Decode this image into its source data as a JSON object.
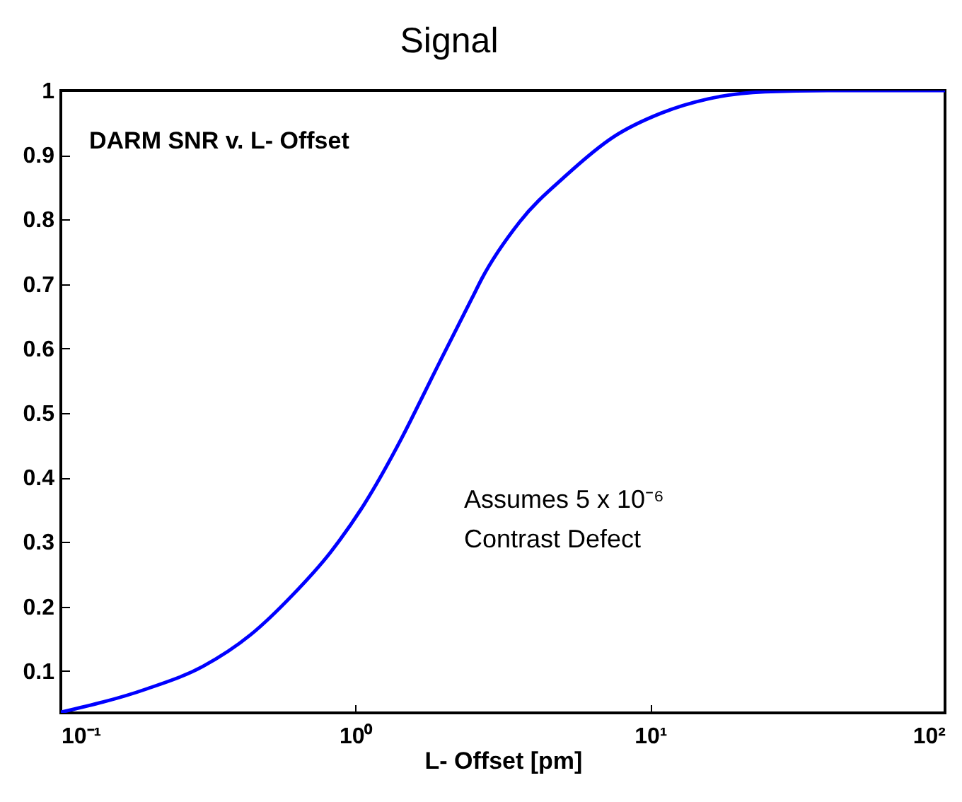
{
  "chart_data": {
    "type": "line",
    "title": "Signal",
    "xlabel": "L- Offset [pm]",
    "log": "x",
    "annotations": [
      "DARM SNR v. L- Offset",
      "Assumes 5 x 10⁻⁶",
      "Contrast Defect"
    ],
    "x": [
      0.1,
      0.195,
      0.303,
      0.44,
      0.612,
      0.822,
      1.065,
      1.43,
      1.72,
      1.92,
      2.49,
      2.68,
      3.6,
      5.2,
      7.5,
      10.9,
      15.7,
      24.5,
      40,
      100
    ],
    "series": [
      {
        "color": "#0000ff",
        "values": [
          0.036,
          0.072,
          0.107,
          0.156,
          0.218,
          0.284,
          0.357,
          0.46,
          0.533,
          0.577,
          0.679,
          0.708,
          0.796,
          0.869,
          0.928,
          0.965,
          0.987,
          0.998,
          1.0,
          1.0
        ]
      }
    ],
    "xlim": [
      0.1,
      100
    ],
    "xticks": [
      {
        "value": 0.1,
        "label": "10⁻¹"
      },
      {
        "value": 1,
        "label": "10⁰"
      },
      {
        "value": 10,
        "label": "10¹"
      },
      {
        "value": 100,
        "label": "10²"
      }
    ],
    "ylim": [
      0.035,
      1
    ],
    "yticks": [
      0.1,
      0.2,
      0.3,
      0.4,
      0.5,
      0.6,
      0.7,
      0.8,
      0.9,
      1
    ],
    "grid": false,
    "marker": "none",
    "line_style": "solid"
  }
}
